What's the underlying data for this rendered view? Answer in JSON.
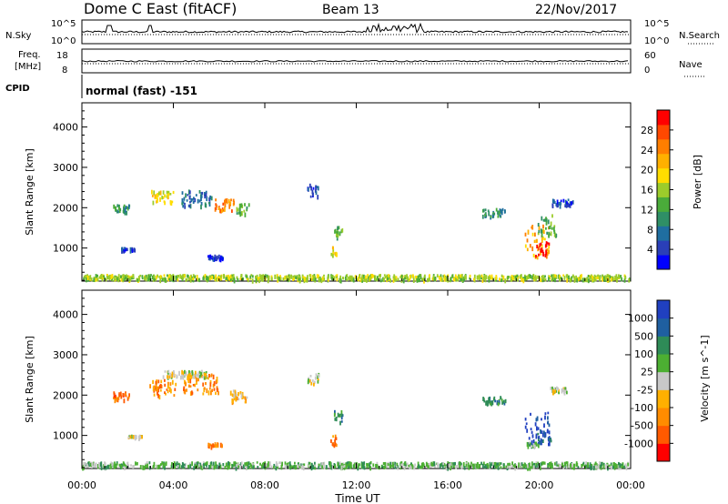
{
  "header": {
    "station": "Dome C East (fitACF)",
    "beam": "Beam 13",
    "date": "22/Nov/2017"
  },
  "noise_panel": {
    "left_label": "N.Sky",
    "left_ticks": [
      "10^5",
      "10^0"
    ],
    "right_label": "N.Search",
    "right_ticks": [
      "10^5",
      "10^0"
    ]
  },
  "freq_panel": {
    "left_label_line1": "Freq.",
    "left_label_line2": "[MHz]",
    "left_ticks": [
      "18",
      "8"
    ],
    "right_label": "Nave",
    "right_ticks": [
      "60",
      "0"
    ]
  },
  "cpid_panel": {
    "label": "CPID",
    "mode_text": "normal (fast) -151"
  },
  "x_axis": {
    "title": "Time UT",
    "ticks": [
      "00:00",
      "04:00",
      "08:00",
      "12:00",
      "16:00",
      "20:00",
      "00:00"
    ]
  },
  "chart_data": [
    {
      "type": "heatmap",
      "panel": "power",
      "ylabel": "Slant Range [km]",
      "yticks": [
        1000,
        2000,
        3000,
        4000
      ],
      "ylim": [
        180,
        4600
      ],
      "xlim_hours": [
        0,
        24
      ],
      "colorbar": {
        "label": "Power [dB]",
        "ticks": [
          "28",
          "24",
          "20",
          "16",
          "12",
          "8",
          "4"
        ],
        "colors": [
          "#0000ff",
          "#2a3fb8",
          "#1f6ea0",
          "#2f8f66",
          "#4aab3a",
          "#9ccc2b",
          "#ffdd00",
          "#ffb000",
          "#ff7e00",
          "#ff4800",
          "#ff0000"
        ]
      },
      "patches": [
        {
          "t": 1.7,
          "r": 2000,
          "dt": 0.7,
          "dr": 200,
          "level": 3
        },
        {
          "t": 3.5,
          "r": 2300,
          "dt": 1.0,
          "dr": 300,
          "level": 6
        },
        {
          "t": 5.0,
          "r": 2250,
          "dt": 1.4,
          "dr": 400,
          "level": 2
        },
        {
          "t": 6.2,
          "r": 2100,
          "dt": 0.9,
          "dr": 300,
          "level": 8
        },
        {
          "t": 7.0,
          "r": 2000,
          "dt": 0.6,
          "dr": 250,
          "level": 4
        },
        {
          "t": 2.0,
          "r": 1000,
          "dt": 0.6,
          "dr": 60,
          "level": 1
        },
        {
          "t": 5.8,
          "r": 800,
          "dt": 0.7,
          "dr": 80,
          "level": 1
        },
        {
          "t": 10.1,
          "r": 2450,
          "dt": 0.5,
          "dr": 300,
          "level": 1
        },
        {
          "t": 11.2,
          "r": 1400,
          "dt": 0.4,
          "dr": 300,
          "level": 4
        },
        {
          "t": 11.0,
          "r": 950,
          "dt": 0.3,
          "dr": 200,
          "level": 6
        },
        {
          "t": 18.0,
          "r": 1900,
          "dt": 1.0,
          "dr": 200,
          "level": 3
        },
        {
          "t": 19.9,
          "r": 1200,
          "dt": 1.1,
          "dr": 800,
          "level": 7
        },
        {
          "t": 20.1,
          "r": 1000,
          "dt": 0.6,
          "dr": 350,
          "level": 10
        },
        {
          "t": 20.3,
          "r": 1600,
          "dt": 0.9,
          "dr": 500,
          "level": 4
        },
        {
          "t": 21.0,
          "r": 2150,
          "dt": 0.9,
          "dr": 150,
          "level": 1
        },
        {
          "t": 12.0,
          "r": 300,
          "dt": 24.0,
          "dr": 120,
          "level": 5
        }
      ]
    },
    {
      "type": "heatmap",
      "panel": "velocity",
      "ylabel": "Slant Range [km]",
      "yticks": [
        1000,
        2000,
        3000,
        4000
      ],
      "ylim": [
        180,
        4600
      ],
      "xlim_hours": [
        0,
        24
      ],
      "colorbar": {
        "label": "Velocity [m s^-1]",
        "ticks": [
          "1000",
          "500",
          "100",
          "25",
          "-25",
          "-100",
          "-500",
          "-1000"
        ],
        "colors": [
          "#ff0000",
          "#ff5a00",
          "#ff8c00",
          "#ffb000",
          "#c8c8c8",
          "#4caf32",
          "#2e8b57",
          "#1f5fa0",
          "#2040c0"
        ]
      },
      "patches": [
        {
          "t": 1.7,
          "r": 2000,
          "dt": 0.7,
          "dr": 200,
          "level": 1
        },
        {
          "t": 3.5,
          "r": 2200,
          "dt": 1.2,
          "dr": 400,
          "level": 2
        },
        {
          "t": 5.2,
          "r": 2300,
          "dt": 1.6,
          "dr": 500,
          "level": 2
        },
        {
          "t": 4.5,
          "r": 2550,
          "dt": 2.0,
          "dr": 150,
          "level": 4
        },
        {
          "t": 6.8,
          "r": 2000,
          "dt": 0.8,
          "dr": 300,
          "level": 3
        },
        {
          "t": 2.3,
          "r": 1000,
          "dt": 0.6,
          "dr": 60,
          "level": 4
        },
        {
          "t": 5.8,
          "r": 800,
          "dt": 0.7,
          "dr": 80,
          "level": 2
        },
        {
          "t": 10.1,
          "r": 2450,
          "dt": 0.5,
          "dr": 300,
          "level": 4
        },
        {
          "t": 11.2,
          "r": 1500,
          "dt": 0.4,
          "dr": 300,
          "level": 6
        },
        {
          "t": 11.0,
          "r": 900,
          "dt": 0.3,
          "dr": 250,
          "level": 2
        },
        {
          "t": 18.0,
          "r": 1900,
          "dt": 1.0,
          "dr": 200,
          "level": 6
        },
        {
          "t": 19.9,
          "r": 1200,
          "dt": 1.1,
          "dr": 800,
          "level": 8
        },
        {
          "t": 20.2,
          "r": 1000,
          "dt": 0.6,
          "dr": 350,
          "level": 7
        },
        {
          "t": 19.7,
          "r": 800,
          "dt": 0.5,
          "dr": 100,
          "level": 5
        },
        {
          "t": 20.8,
          "r": 2150,
          "dt": 0.8,
          "dr": 150,
          "level": 4
        },
        {
          "t": 12.0,
          "r": 300,
          "dt": 24.0,
          "dr": 120,
          "level": 5
        }
      ]
    }
  ]
}
